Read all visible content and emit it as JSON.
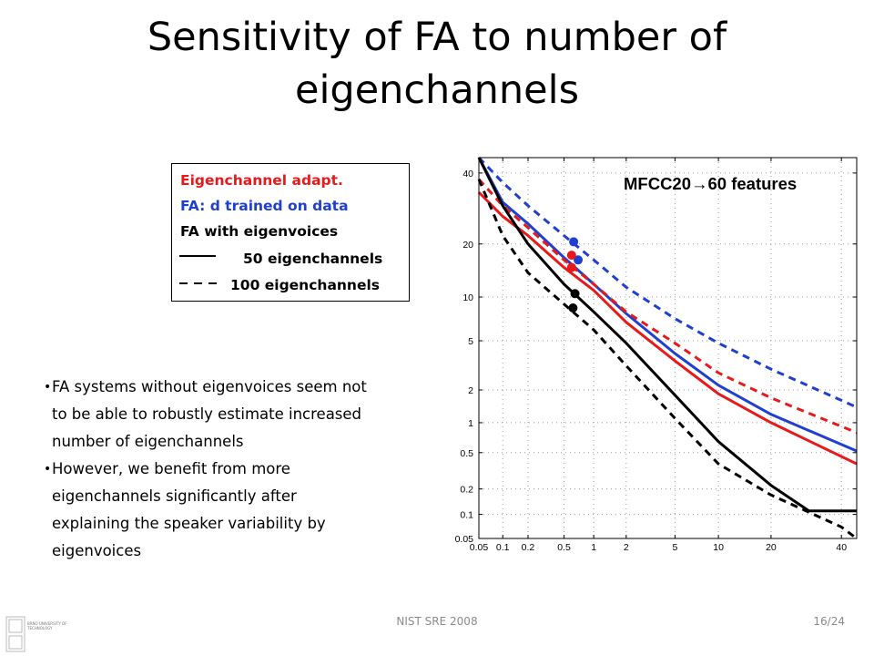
{
  "slide": {
    "title_line1": "Sensitivity of FA to number of",
    "title_line2": "eigenchannels",
    "footer": "NIST SRE 2008",
    "page": "16/24",
    "logo_text": "BRNO UNIVERSITY OF TECHNOLOGY"
  },
  "legend": {
    "line1": "Eigenchannel adapt.",
    "line2": "FA: d trained on data",
    "line3": "FA with eigenvoices",
    "solid_label": "50 eigenchannels",
    "dashed_label": "100 eigenchannels",
    "colors": {
      "eigenchannel": "#e8191a",
      "fa_d": "#1f3fcf",
      "fa_eigenvoices": "#000000"
    }
  },
  "bullets": [
    "FA systems without eigenvoices seem not to be able to robustly estimate increased number of eigenchannels",
    "However, we benefit from more eigenchannels significantly after explaining the speaker variability by eigenvoices"
  ],
  "chart_data": {
    "type": "line",
    "annotation_main": "MFCC20",
    "annotation_arrow": "→",
    "annotation_suffix": "60 features",
    "x_scale": "probit",
    "y_scale": "probit",
    "xlim": [
      0.05,
      45
    ],
    "ylim": [
      0.05,
      45
    ],
    "x_ticks": [
      0.05,
      0.1,
      0.2,
      0.5,
      1,
      2,
      5,
      10,
      20,
      40
    ],
    "y_ticks": [
      0.05,
      0.1,
      0.2,
      0.5,
      1,
      2,
      5,
      10,
      20,
      40
    ],
    "x_tick_labels": [
      "0.05",
      "0.1",
      "0.2",
      "0.5",
      "1",
      "2",
      "5",
      "10",
      "20",
      "40"
    ],
    "y_tick_labels": [
      "0.05",
      "0.1",
      "0.2",
      "0.5",
      "1",
      "2",
      "5",
      "10",
      "20",
      "40"
    ],
    "grid": true,
    "series": [
      {
        "color": "#1f3fcf",
        "dash": "dashed",
        "x": [
          0.05,
          0.1,
          0.2,
          0.5,
          1,
          2,
          5,
          10,
          20,
          45
        ],
        "y": [
          45,
          37,
          30,
          22,
          16.5,
          11.5,
          7.2,
          4.8,
          3,
          1.4
        ],
        "marker": [
          0.63,
          20.5
        ]
      },
      {
        "color": "#1f3fcf",
        "dash": "solid",
        "x": [
          0.05,
          0.1,
          0.2,
          0.5,
          1,
          2,
          5,
          10,
          20,
          45
        ],
        "y": [
          45,
          31,
          25,
          17,
          12,
          7.8,
          4,
          2.2,
          1.2,
          0.52
        ],
        "marker": [
          0.7,
          16.5
        ]
      },
      {
        "color": "#e8191a",
        "dash": "dashed",
        "x": [
          0.05,
          0.1,
          0.2,
          0.5,
          1,
          2,
          5,
          10,
          20,
          45
        ],
        "y": [
          38,
          30,
          24,
          16.5,
          12,
          8,
          4.8,
          2.8,
          1.7,
          0.8
        ],
        "marker": [
          0.6,
          17.5
        ]
      },
      {
        "color": "#e8191a",
        "dash": "solid",
        "x": [
          0.05,
          0.1,
          0.2,
          0.5,
          1,
          2,
          5,
          10,
          20,
          45
        ],
        "y": [
          34,
          27,
          22,
          15,
          11,
          6.8,
          3.5,
          1.85,
          1,
          0.38
        ],
        "marker": [
          0.6,
          15
        ]
      },
      {
        "color": "#000000",
        "dash": "solid",
        "x": [
          0.05,
          0.1,
          0.2,
          0.5,
          1,
          2,
          5,
          10,
          20,
          30,
          45
        ],
        "y": [
          45,
          30,
          20,
          12,
          8,
          4.8,
          1.8,
          0.65,
          0.22,
          0.11,
          0.11
        ],
        "marker": [
          0.65,
          10.5
        ]
      },
      {
        "color": "#000000",
        "dash": "dashed",
        "x": [
          0.05,
          0.1,
          0.2,
          0.5,
          1,
          2,
          5,
          10,
          20,
          40,
          45
        ],
        "y": [
          38,
          22,
          14,
          9,
          6,
          3.2,
          1.1,
          0.38,
          0.17,
          0.07,
          0.05
        ],
        "marker": [
          0.62,
          8.5
        ]
      }
    ]
  }
}
